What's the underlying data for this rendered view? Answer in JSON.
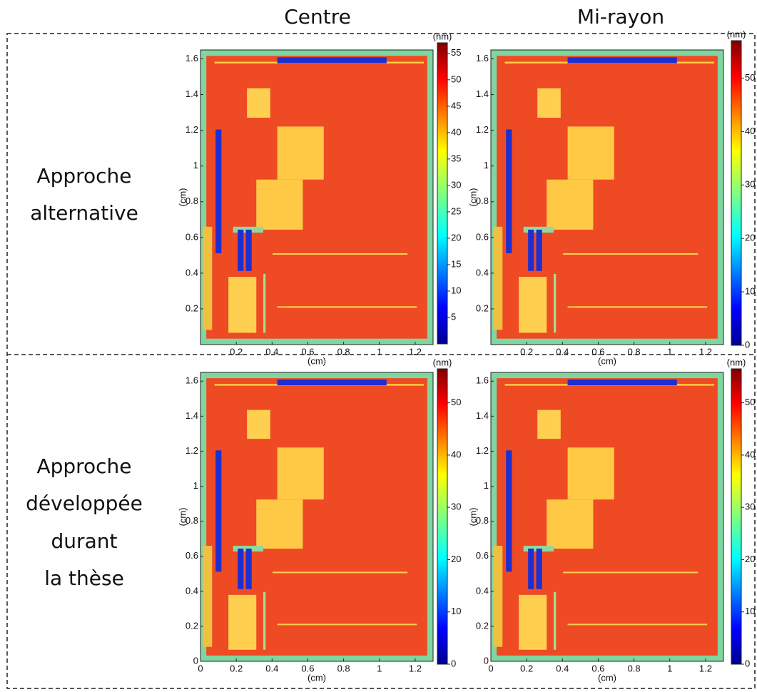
{
  "columns": [
    "Centre",
    "Mi-rayon"
  ],
  "rows": [
    {
      "lines": [
        "Approche",
        "alternative"
      ]
    },
    {
      "lines": [
        "Approche",
        "développée",
        "durant",
        "la thèse"
      ]
    }
  ],
  "chart_data": [
    {
      "type": "heatmap",
      "xlabel": "(cm)",
      "ylabel": "(cm)",
      "xlim": [
        0,
        1.3
      ],
      "ylim": [
        0,
        1.65
      ],
      "xticks": [
        0.2,
        0.4,
        0.6,
        0.8,
        1,
        1.2
      ],
      "yticks": [
        0.2,
        0.4,
        0.6,
        0.8,
        1,
        1.2,
        1.4,
        1.6
      ],
      "colorbar": {
        "label": "(nm)",
        "lim": [
          0,
          57
        ],
        "ticks": [
          5,
          10,
          15,
          20,
          25,
          30,
          35,
          40,
          45,
          50,
          55
        ]
      }
    },
    {
      "type": "heatmap",
      "xlabel": "(cm)",
      "ylabel": "(cm)",
      "xlim": [
        0,
        1.3
      ],
      "ylim": [
        0,
        1.65
      ],
      "xticks": [
        0.2,
        0.4,
        0.6,
        0.8,
        1,
        1.2
      ],
      "yticks": [
        0.2,
        0.4,
        0.6,
        0.8,
        1,
        1.2,
        1.4,
        1.6
      ],
      "colorbar": {
        "label": "(nm)",
        "lim": [
          0,
          57
        ],
        "ticks": [
          0,
          10,
          20,
          30,
          40,
          50
        ]
      }
    },
    {
      "type": "heatmap",
      "xlabel": "(cm)",
      "ylabel": "(cm)",
      "xlim": [
        0,
        1.3
      ],
      "ylim": [
        0,
        1.65
      ],
      "xticks": [
        0,
        0.2,
        0.4,
        0.6,
        0.8,
        1,
        1.2
      ],
      "yticks": [
        0,
        0.2,
        0.4,
        0.6,
        0.8,
        1,
        1.2,
        1.4,
        1.6
      ],
      "colorbar": {
        "label": "(nm)",
        "lim": [
          0,
          56.5
        ],
        "ticks": [
          0,
          10,
          20,
          30,
          40,
          50
        ]
      }
    },
    {
      "type": "heatmap",
      "xlabel": "(cm)",
      "ylabel": "(cm)",
      "xlim": [
        0,
        1.3
      ],
      "ylim": [
        0,
        1.65
      ],
      "xticks": [
        0,
        0.2,
        0.4,
        0.6,
        0.8,
        1,
        1.2
      ],
      "yticks": [
        0,
        0.2,
        0.4,
        0.6,
        0.8,
        1,
        1.2,
        1.4,
        1.6
      ],
      "colorbar": {
        "label": "(nm)",
        "lim": [
          0,
          56.5
        ],
        "ticks": [
          0,
          10,
          20,
          30,
          40,
          50
        ]
      }
    }
  ]
}
